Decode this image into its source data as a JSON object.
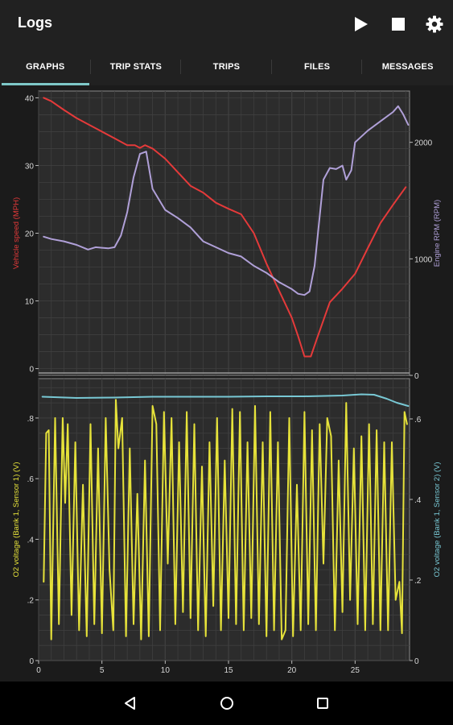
{
  "app": {
    "title": "Logs",
    "actions": [
      "play-icon",
      "stop-icon",
      "gear-icon"
    ]
  },
  "tabs": [
    {
      "label": "GRAPHS",
      "active": true
    },
    {
      "label": "TRIP STATS",
      "active": false
    },
    {
      "label": "TRIPS",
      "active": false
    },
    {
      "label": "FILES",
      "active": false
    },
    {
      "label": "MESSAGES",
      "active": false
    }
  ],
  "navbar": {
    "icons": [
      "back-icon",
      "home-icon",
      "recents-icon"
    ]
  },
  "chart_data": [
    {
      "type": "line",
      "grid": true,
      "xlim": [
        0,
        29.3
      ],
      "left_axis": {
        "label": "Vehicle speed (MPH)",
        "ylim": [
          -1,
          41
        ],
        "ticks": [
          0,
          10,
          20,
          30,
          40
        ],
        "color": "#e53a3a"
      },
      "right_axis": {
        "label": "Engine RPM (RPM)",
        "ylim": [
          0,
          2440
        ],
        "ticks": [
          0,
          1000,
          2000
        ],
        "color": "#b0a0d8"
      },
      "series": [
        {
          "name": "Vehicle speed (MPH)",
          "axis": "left",
          "color": "#e53a3a",
          "x": [
            0.4,
            1,
            2,
            3,
            4,
            5,
            6,
            7,
            7.6,
            8,
            8.4,
            9,
            10,
            11,
            12,
            13,
            14,
            15,
            16,
            17,
            18,
            19,
            20,
            20.5,
            21,
            21.5,
            22,
            23,
            24,
            25,
            26,
            27,
            28,
            29
          ],
          "values": [
            40,
            39.5,
            38.2,
            37,
            36,
            35,
            34,
            33,
            33,
            32.6,
            33,
            32.5,
            31,
            29,
            27,
            26,
            24.5,
            23.6,
            22.8,
            20,
            15.5,
            11.5,
            7.5,
            4.8,
            1.8,
            1.8,
            4.5,
            9.8,
            11.8,
            14,
            17.8,
            21.5,
            24.2,
            26.8
          ]
        },
        {
          "name": "Engine RPM (RPM)",
          "axis": "right",
          "color": "#b0a0d8",
          "x": [
            0.4,
            1,
            2,
            3,
            3.9,
            4.5,
            5.5,
            6,
            6.5,
            7,
            7.5,
            8,
            8.5,
            9,
            10,
            11,
            12,
            13,
            14,
            15,
            16,
            17,
            18,
            19,
            20,
            20.5,
            21,
            21.4,
            21.8,
            22.5,
            23,
            23.5,
            24,
            24.3,
            24.7,
            25,
            26,
            27,
            28,
            28.4,
            28.8,
            29.2
          ],
          "values": [
            1190,
            1170,
            1150,
            1120,
            1080,
            1100,
            1090,
            1100,
            1200,
            1400,
            1700,
            1900,
            1920,
            1600,
            1420,
            1350,
            1270,
            1150,
            1100,
            1050,
            1020,
            940,
            880,
            800,
            740,
            700,
            690,
            720,
            940,
            1680,
            1780,
            1770,
            1800,
            1680,
            1760,
            2000,
            2100,
            2180,
            2260,
            2310,
            2240,
            2150
          ]
        }
      ]
    },
    {
      "type": "line",
      "grid": true,
      "xlim": [
        0,
        29.3
      ],
      "xticks": [
        0,
        5,
        10,
        15,
        20,
        25
      ],
      "left_axis": {
        "label": "O2 voltage (Bank 1, Sensor 1) (V)",
        "ylim": [
          0,
          0.93
        ],
        "ticks": [
          0,
          0.2,
          0.4,
          0.6,
          0.8
        ],
        "color": "#e6e23a"
      },
      "right_axis": {
        "label": "O2 voltage (Bank 1, Sensor 2) (V)",
        "ylim": [
          0,
          0.7
        ],
        "ticks": [
          0,
          0.2,
          0.4,
          0.6
        ],
        "color": "#78c8d4"
      },
      "series": [
        {
          "name": "O2 voltage (Bank 1, Sensor 1) (V)",
          "axis": "left",
          "color": "#e6e23a",
          "x": [
            0.4,
            0.6,
            0.8,
            1.0,
            1.3,
            1.6,
            1.9,
            2.1,
            2.3,
            2.6,
            2.9,
            3.2,
            3.5,
            3.8,
            4.1,
            4.4,
            4.7,
            5.0,
            5.3,
            5.6,
            5.9,
            6.1,
            6.3,
            6.6,
            6.9,
            7.2,
            7.5,
            7.8,
            8.1,
            8.4,
            8.7,
            9.0,
            9.3,
            9.6,
            9.9,
            10.2,
            10.5,
            10.8,
            11.1,
            11.4,
            11.7,
            12.0,
            12.3,
            12.6,
            12.9,
            13.2,
            13.5,
            13.8,
            14.1,
            14.4,
            14.7,
            15.0,
            15.3,
            15.6,
            15.9,
            16.2,
            16.5,
            16.8,
            17.1,
            17.4,
            17.7,
            18.0,
            18.3,
            18.6,
            18.9,
            19.2,
            19.5,
            19.8,
            20.1,
            20.4,
            20.7,
            21.0,
            21.3,
            21.6,
            21.9,
            22.2,
            22.5,
            22.8,
            23.1,
            23.4,
            23.7,
            24.0,
            24.3,
            24.6,
            24.9,
            25.2,
            25.5,
            25.8,
            26.1,
            26.4,
            26.7,
            27.0,
            27.3,
            27.6,
            27.9,
            28.2,
            28.5,
            28.7,
            28.9,
            29.1
          ],
          "values": [
            0.26,
            0.75,
            0.76,
            0.07,
            0.8,
            0.12,
            0.8,
            0.52,
            0.78,
            0.15,
            0.72,
            0.1,
            0.58,
            0.08,
            0.78,
            0.12,
            0.7,
            0.09,
            0.8,
            0.3,
            0.1,
            0.86,
            0.7,
            0.8,
            0.08,
            0.7,
            0.12,
            0.55,
            0.07,
            0.66,
            0.08,
            0.84,
            0.78,
            0.1,
            0.82,
            0.32,
            0.8,
            0.12,
            0.72,
            0.16,
            0.82,
            0.14,
            0.78,
            0.1,
            0.64,
            0.08,
            0.72,
            0.18,
            0.8,
            0.1,
            0.66,
            0.14,
            0.83,
            0.12,
            0.82,
            0.1,
            0.72,
            0.14,
            0.84,
            0.12,
            0.72,
            0.08,
            0.82,
            0.1,
            0.72,
            0.07,
            0.1,
            0.8,
            0.08,
            0.58,
            0.1,
            0.82,
            0.12,
            0.76,
            0.1,
            0.78,
            0.32,
            0.8,
            0.74,
            0.1,
            0.66,
            0.16,
            0.85,
            0.2,
            0.7,
            0.12,
            0.74,
            0.1,
            0.78,
            0.12,
            0.76,
            0.1,
            0.72,
            0.1,
            0.72,
            0.2,
            0.26,
            0.09,
            0.82,
            0.78
          ]
        },
        {
          "name": "O2 voltage (Bank 1, Sensor 2) (V)",
          "axis": "right",
          "color": "#78c8d4",
          "x": [
            0.3,
            3,
            6,
            9,
            12,
            15,
            18,
            21,
            24,
            25.5,
            26.5,
            27.5,
            28.3,
            29.2
          ],
          "values": [
            0.655,
            0.652,
            0.653,
            0.655,
            0.655,
            0.655,
            0.656,
            0.656,
            0.658,
            0.661,
            0.66,
            0.65,
            0.64,
            0.632
          ]
        }
      ]
    }
  ]
}
